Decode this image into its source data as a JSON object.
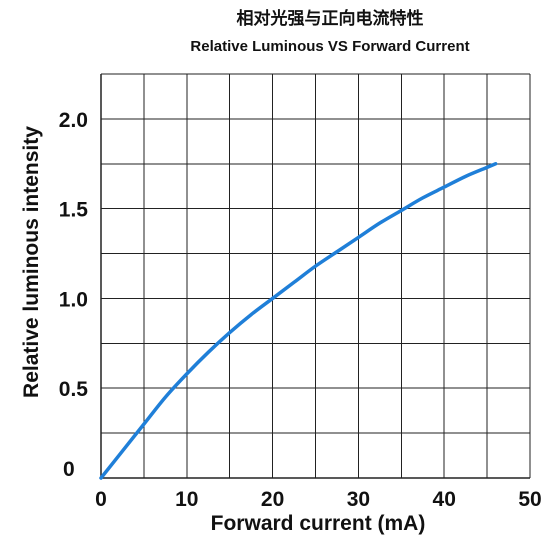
{
  "chart_data": {
    "type": "line",
    "title": "相对光强与正向电流特性",
    "subtitle": "Relative Luminous VS Forward Current",
    "xlabel": "Forward current (mA)",
    "ylabel": "Relative luminous intensity",
    "xlim": [
      0,
      50
    ],
    "ylim": [
      0,
      2.25
    ],
    "x_ticks": [
      0,
      10,
      20,
      30,
      40,
      50
    ],
    "x_tick_labels": [
      "0",
      "10",
      "20",
      "30",
      "40",
      "50"
    ],
    "y_ticks": [
      0,
      0.5,
      1.0,
      1.5,
      2.0
    ],
    "y_tick_labels": [
      "0",
      "0.5",
      "1.0",
      "1.5",
      "2.0"
    ],
    "x_grid_step": 5,
    "y_grid_step": 0.25,
    "grid": true,
    "legend": "none",
    "line_color": "#1f7fd8",
    "grid_color": "#222222",
    "series": [
      {
        "x": [
          0,
          2.5,
          5,
          7.5,
          10,
          12.5,
          15,
          17.5,
          20,
          22.5,
          25,
          27.5,
          30,
          32.5,
          35,
          37.5,
          40,
          42.5,
          45,
          46
        ],
        "values": [
          0,
          0.15,
          0.3,
          0.45,
          0.58,
          0.7,
          0.81,
          0.91,
          1.0,
          1.09,
          1.18,
          1.26,
          1.34,
          1.42,
          1.49,
          1.56,
          1.62,
          1.68,
          1.73,
          1.75
        ]
      }
    ]
  }
}
